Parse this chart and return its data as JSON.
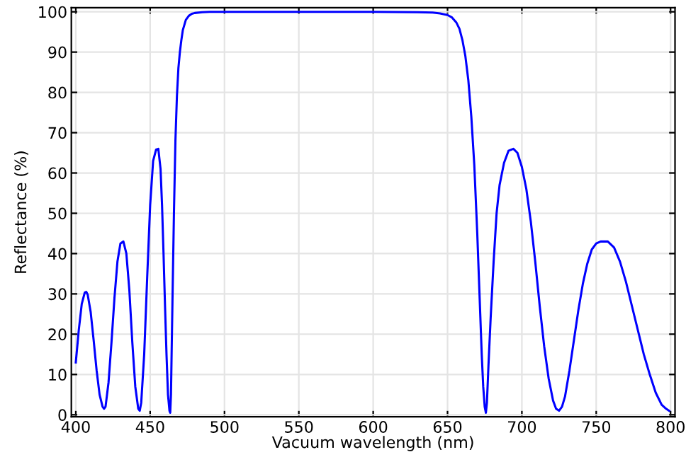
{
  "chart_data": {
    "type": "line",
    "xlabel": "Vacuum wavelength (nm)",
    "ylabel": "Reflectance (%)",
    "xlim": [
      397,
      803
    ],
    "ylim": [
      -0.5,
      101
    ],
    "xticks": [
      400,
      450,
      500,
      550,
      600,
      650,
      700,
      750,
      800
    ],
    "yticks": [
      0,
      10,
      20,
      30,
      40,
      50,
      60,
      70,
      80,
      90,
      100
    ],
    "grid": true,
    "line_style": "solid",
    "marker": "none",
    "series": [
      {
        "color": "#0000ff",
        "x": [
          400,
          402,
          404,
          406,
          407,
          408,
          410,
          412,
          414,
          416,
          418,
          419,
          420,
          422,
          424,
          426,
          428,
          430,
          432,
          434,
          436,
          438,
          440,
          442,
          443,
          444,
          446,
          448,
          450,
          452,
          454,
          455.5,
          457,
          458,
          459,
          460,
          461,
          462,
          463,
          463.5,
          464,
          465,
          466,
          467,
          468,
          469,
          470,
          471,
          472,
          474,
          476,
          478,
          480,
          485,
          490,
          500,
          550,
          600,
          630,
          640,
          645,
          650,
          653,
          656,
          658,
          660,
          662,
          664,
          666,
          668,
          670,
          671,
          672,
          673,
          674,
          675,
          675.8,
          676.5,
          677.5,
          679,
          681,
          683,
          685,
          688,
          691,
          694.3,
          697,
          700,
          703,
          706,
          709,
          712,
          715,
          718,
          721,
          723,
          725,
          727,
          729,
          732,
          735,
          738,
          741,
          744,
          747,
          750,
          753,
          757.8,
          762,
          766,
          770,
          774,
          778,
          782,
          786,
          790,
          794,
          797,
          799
        ],
        "values": [
          13,
          21,
          27.5,
          30.3,
          30.5,
          29.8,
          25.5,
          18.5,
          11,
          5,
          2,
          1.5,
          2,
          8,
          18,
          29,
          38,
          42.5,
          43,
          40,
          31,
          18,
          7,
          1.5,
          1,
          3,
          15,
          34,
          52,
          63,
          65.8,
          66,
          61,
          52,
          40,
          27,
          15,
          5,
          1,
          0.5,
          5,
          28,
          50,
          68,
          79,
          86,
          90,
          93,
          95.5,
          98,
          99,
          99.5,
          99.7,
          99.9,
          100,
          100,
          100,
          100,
          99.9,
          99.8,
          99.6,
          99.2,
          98.6,
          97.3,
          95.8,
          93,
          89,
          83,
          74,
          62,
          45,
          35,
          25,
          15,
          7,
          2,
          0.5,
          3,
          12,
          24,
          38,
          50,
          57,
          62.5,
          65.5,
          66,
          65,
          61.5,
          56,
          48,
          38,
          27,
          17,
          9,
          3.5,
          1.5,
          1,
          2,
          4.5,
          11,
          18.5,
          26,
          32.5,
          37.5,
          41,
          42.5,
          43,
          43,
          41.5,
          38,
          33,
          27,
          21,
          15,
          10,
          5.5,
          2.5,
          1.5,
          1
        ]
      }
    ]
  }
}
